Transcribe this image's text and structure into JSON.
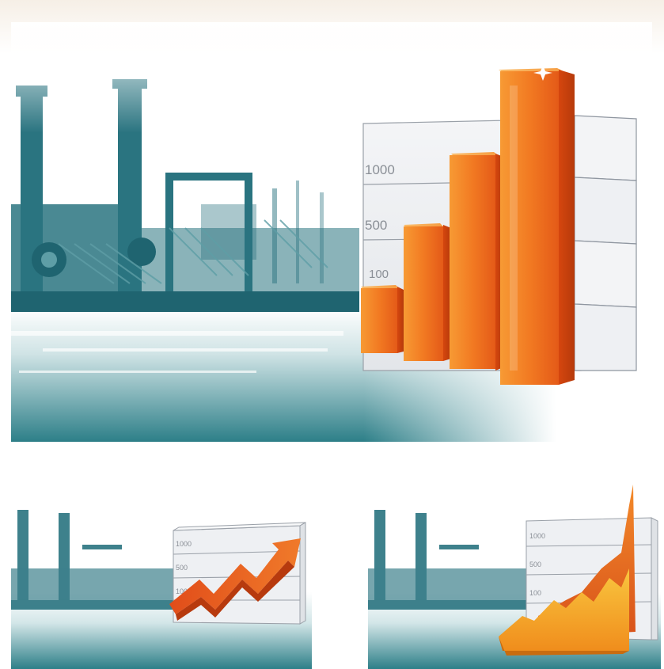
{
  "main_chart": {
    "tick_labels": [
      "1000",
      "500",
      "100"
    ]
  },
  "small_chart_line": {
    "tick_labels": [
      "1000",
      "500",
      "100"
    ]
  },
  "small_chart_area": {
    "tick_labels": [
      "1000",
      "500",
      "100"
    ]
  },
  "colors": {
    "teal_dark": "#1f6f79",
    "teal_light": "#7fb3ba",
    "orange_light": "#f7a23a",
    "orange_dark": "#e24a14",
    "gold": "#f6c23b",
    "grid_line": "#9aa0a8"
  }
}
